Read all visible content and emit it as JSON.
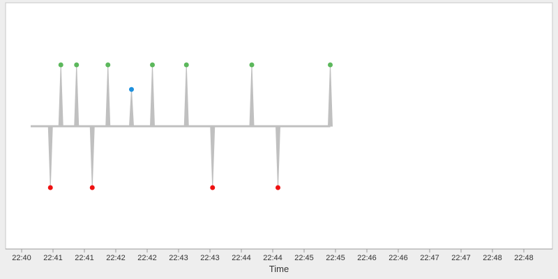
{
  "chart_data": {
    "type": "scatter",
    "title": "",
    "xlabel": "Time",
    "ylabel": "",
    "x_ticks": [
      "22:40",
      "22:41",
      "22:41",
      "22:42",
      "22:42",
      "22:43",
      "22:43",
      "22:44",
      "22:44",
      "22:45",
      "22:45",
      "22:46",
      "22:46",
      "22:47",
      "22:47",
      "22:48",
      "22:48"
    ],
    "grid": false,
    "legend": "none",
    "baseline": 0,
    "ylim": [
      -2,
      2
    ],
    "series": [
      {
        "color": "#5cb85c",
        "points": [
          {
            "x": "22:41:15",
            "y": 1
          },
          {
            "x": "22:41:45",
            "y": 1
          },
          {
            "x": "22:42:45",
            "y": 1
          },
          {
            "x": "22:44:10",
            "y": 1
          },
          {
            "x": "22:45:15",
            "y": 1
          },
          {
            "x": "22:47:20",
            "y": 1
          },
          {
            "x": "22:49:50",
            "y": 1
          }
        ]
      },
      {
        "color": "#1e90dd",
        "points": [
          {
            "x": "22:43:30",
            "y": 0.6
          }
        ]
      },
      {
        "color": "#ee1111",
        "points": [
          {
            "x": "22:40:55",
            "y": -1
          },
          {
            "x": "22:42:15",
            "y": -1
          },
          {
            "x": "22:46:05",
            "y": -1
          },
          {
            "x": "22:48:10",
            "y": -1
          }
        ]
      }
    ],
    "line_color": "#c0c0c0"
  }
}
